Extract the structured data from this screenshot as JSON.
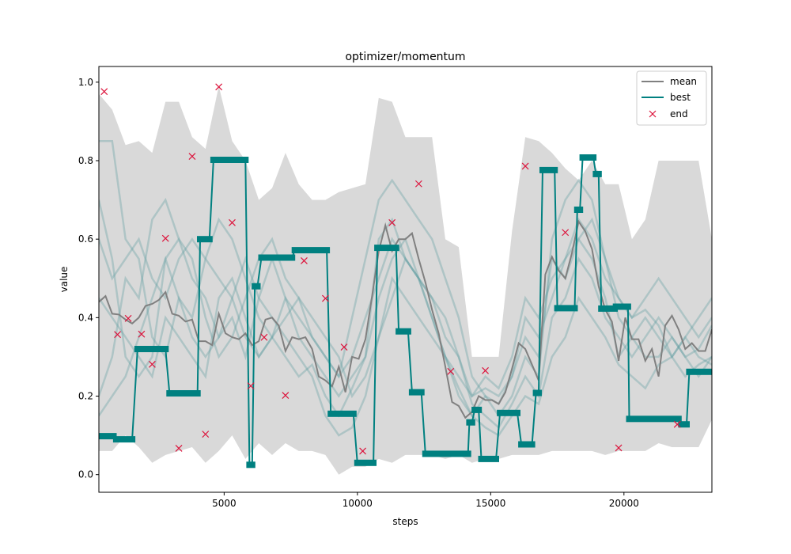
{
  "chart_data": {
    "type": "line",
    "title": "optimizer/momentum",
    "xlabel": "steps",
    "ylabel": "value",
    "xlim": [
      300,
      23300
    ],
    "ylim": [
      -0.045,
      1.04
    ],
    "xticks": [
      5000,
      10000,
      15000,
      20000
    ],
    "xtick_labels": [
      "5000",
      "10000",
      "15000",
      "20000"
    ],
    "yticks": [
      0.0,
      0.2,
      0.4,
      0.6,
      0.8,
      1.0
    ],
    "ytick_labels": [
      "0.0",
      "0.2",
      "0.4",
      "0.6",
      "0.8",
      "1.0"
    ],
    "grid": false,
    "legend": {
      "position": "top-right",
      "entries": [
        "mean",
        "best",
        "end"
      ]
    },
    "colors": {
      "mean": "#808080",
      "best": "#008080",
      "end": "#dc143c",
      "band": "#d9d9d9",
      "runs": "#5f9ea0"
    },
    "band": {
      "x": [
        300,
        800,
        1300,
        1800,
        2300,
        2800,
        3300,
        3800,
        4300,
        4800,
        5300,
        5800,
        6300,
        6800,
        7300,
        7800,
        8300,
        8800,
        9300,
        9800,
        10300,
        10800,
        11300,
        11800,
        12300,
        12800,
        13300,
        13800,
        14300,
        14800,
        15300,
        15800,
        16300,
        16800,
        17300,
        17800,
        18300,
        18800,
        19300,
        19800,
        20300,
        20800,
        21300,
        21800,
        22300,
        22800,
        23300
      ],
      "upper": [
        0.97,
        0.93,
        0.84,
        0.85,
        0.82,
        0.95,
        0.95,
        0.86,
        0.83,
        0.99,
        0.85,
        0.8,
        0.7,
        0.73,
        0.82,
        0.74,
        0.7,
        0.7,
        0.72,
        0.73,
        0.74,
        0.96,
        0.95,
        0.86,
        0.86,
        0.86,
        0.6,
        0.58,
        0.3,
        0.3,
        0.3,
        0.62,
        0.86,
        0.85,
        0.82,
        0.78,
        0.75,
        0.8,
        0.74,
        0.74,
        0.6,
        0.65,
        0.8,
        0.8,
        0.8,
        0.8,
        0.6
      ],
      "lower": [
        0.06,
        0.06,
        0.1,
        0.07,
        0.03,
        0.05,
        0.06,
        0.07,
        0.03,
        0.06,
        0.1,
        0.04,
        0.08,
        0.05,
        0.08,
        0.06,
        0.06,
        0.05,
        0.0,
        0.02,
        0.02,
        0.04,
        0.03,
        0.05,
        0.05,
        0.05,
        0.04,
        0.05,
        0.03,
        0.04,
        0.04,
        0.05,
        0.05,
        0.05,
        0.06,
        0.06,
        0.06,
        0.06,
        0.05,
        0.06,
        0.06,
        0.06,
        0.08,
        0.07,
        0.07,
        0.07,
        0.14
      ]
    },
    "series": [
      {
        "name": "mean",
        "x": [
          300,
          550,
          800,
          1050,
          1300,
          1550,
          1800,
          2050,
          2300,
          2550,
          2800,
          3050,
          3300,
          3550,
          3800,
          4050,
          4300,
          4550,
          4800,
          5050,
          5300,
          5550,
          5800,
          6050,
          6300,
          6550,
          6800,
          7050,
          7300,
          7550,
          7800,
          8050,
          8300,
          8550,
          8800,
          9050,
          9300,
          9550,
          9800,
          10050,
          10300,
          10550,
          10800,
          11050,
          11300,
          11550,
          11800,
          12050,
          12300,
          12550,
          12800,
          13050,
          13300,
          13550,
          13800,
          14050,
          14300,
          14550,
          14800,
          15050,
          15300,
          15550,
          15800,
          16050,
          16300,
          16550,
          16800,
          17050,
          17300,
          17550,
          17800,
          18050,
          18300,
          18550,
          18800,
          19050,
          19300,
          19550,
          19800,
          20050,
          20300,
          20550,
          20800,
          21050,
          21300,
          21550,
          21800,
          22050,
          22300,
          22550,
          22800,
          23050,
          23300
        ],
        "values": [
          0.44,
          0.455,
          0.41,
          0.408,
          0.395,
          0.385,
          0.4,
          0.43,
          0.435,
          0.445,
          0.465,
          0.41,
          0.405,
          0.39,
          0.395,
          0.34,
          0.34,
          0.33,
          0.41,
          0.36,
          0.35,
          0.345,
          0.36,
          0.33,
          0.34,
          0.395,
          0.4,
          0.38,
          0.315,
          0.35,
          0.345,
          0.35,
          0.32,
          0.25,
          0.24,
          0.225,
          0.275,
          0.21,
          0.3,
          0.295,
          0.345,
          0.455,
          0.57,
          0.635,
          0.57,
          0.6,
          0.6,
          0.615,
          0.55,
          0.49,
          0.42,
          0.36,
          0.275,
          0.185,
          0.175,
          0.145,
          0.16,
          0.2,
          0.19,
          0.19,
          0.18,
          0.21,
          0.27,
          0.335,
          0.32,
          0.28,
          0.24,
          0.51,
          0.555,
          0.52,
          0.5,
          0.565,
          0.645,
          0.62,
          0.575,
          0.48,
          0.42,
          0.39,
          0.29,
          0.4,
          0.345,
          0.345,
          0.29,
          0.32,
          0.25,
          0.38,
          0.405,
          0.37,
          0.32,
          0.335,
          0.315,
          0.315,
          0.37
        ]
      },
      {
        "name": "best",
        "steps": [
          [
            300,
            850,
            0.098
          ],
          [
            950,
            1550,
            0.09
          ],
          [
            1750,
            2800,
            0.32
          ],
          [
            2950,
            4000,
            0.207
          ],
          [
            4100,
            4450,
            0.6
          ],
          [
            4600,
            5800,
            0.802
          ],
          [
            5950,
            6050,
            0.025
          ],
          [
            6150,
            6250,
            0.48
          ],
          [
            6400,
            7550,
            0.553
          ],
          [
            7650,
            8850,
            0.572
          ],
          [
            9000,
            9850,
            0.155
          ],
          [
            10000,
            10600,
            0.03
          ],
          [
            10750,
            11450,
            0.578
          ],
          [
            11550,
            11900,
            0.365
          ],
          [
            12050,
            12400,
            0.21
          ],
          [
            12550,
            14150,
            0.053
          ],
          [
            14200,
            14300,
            0.133
          ],
          [
            14400,
            14550,
            0.165
          ],
          [
            14650,
            15200,
            0.04
          ],
          [
            15350,
            16000,
            0.157
          ],
          [
            16150,
            16550,
            0.077
          ],
          [
            16700,
            16800,
            0.208
          ],
          [
            16950,
            17400,
            0.776
          ],
          [
            17500,
            18150,
            0.424
          ],
          [
            18250,
            18350,
            0.675
          ],
          [
            18450,
            18850,
            0.808
          ],
          [
            18950,
            19050,
            0.766
          ],
          [
            19150,
            19650,
            0.423
          ],
          [
            19700,
            20150,
            0.428
          ],
          [
            20200,
            22050,
            0.142
          ],
          [
            22150,
            22350,
            0.128
          ],
          [
            22450,
            23300,
            0.262
          ]
        ]
      },
      {
        "name": "end",
        "x": [
          500,
          1000,
          1400,
          1900,
          2300,
          2800,
          3300,
          3800,
          4300,
          4800,
          5300,
          6000,
          6500,
          7300,
          8000,
          8800,
          9500,
          10200,
          11300,
          12300,
          13500,
          14800,
          16300,
          17800,
          19800,
          22000
        ],
        "values": [
          0.976,
          0.357,
          0.398,
          0.358,
          0.281,
          0.602,
          0.067,
          0.811,
          0.103,
          0.988,
          0.642,
          0.226,
          0.35,
          0.202,
          0.545,
          0.449,
          0.325,
          0.06,
          0.642,
          0.741,
          0.263,
          0.265,
          0.786,
          0.617,
          0.068,
          0.128
        ]
      }
    ],
    "runs": [
      [
        0.7,
        0.55,
        0.3,
        0.25,
        0.3,
        0.55,
        0.6,
        0.5,
        0.45,
        0.35,
        0.4,
        0.3,
        0.45,
        0.55,
        0.45,
        0.35,
        0.3,
        0.25,
        0.2,
        0.25,
        0.3,
        0.45,
        0.55,
        0.6,
        0.5,
        0.4,
        0.3,
        0.2,
        0.15,
        0.2,
        0.18,
        0.25,
        0.35,
        0.3,
        0.55,
        0.5,
        0.6,
        0.55,
        0.45,
        0.3,
        0.35,
        0.4,
        0.35,
        0.3,
        0.35,
        0.4,
        0.45
      ],
      [
        0.85,
        0.85,
        0.6,
        0.55,
        0.35,
        0.3,
        0.45,
        0.4,
        0.55,
        0.65,
        0.6,
        0.5,
        0.4,
        0.35,
        0.45,
        0.4,
        0.35,
        0.3,
        0.25,
        0.4,
        0.55,
        0.7,
        0.75,
        0.7,
        0.65,
        0.6,
        0.5,
        0.4,
        0.25,
        0.2,
        0.15,
        0.2,
        0.3,
        0.25,
        0.6,
        0.7,
        0.75,
        0.7,
        0.55,
        0.4,
        0.35,
        0.3,
        0.3,
        0.35,
        0.3,
        0.25,
        0.3
      ],
      [
        0.2,
        0.3,
        0.5,
        0.45,
        0.65,
        0.7,
        0.6,
        0.55,
        0.4,
        0.3,
        0.35,
        0.45,
        0.55,
        0.6,
        0.5,
        0.45,
        0.4,
        0.35,
        0.3,
        0.2,
        0.25,
        0.35,
        0.45,
        0.55,
        0.5,
        0.45,
        0.35,
        0.3,
        0.2,
        0.22,
        0.2,
        0.25,
        0.4,
        0.35,
        0.45,
        0.55,
        0.65,
        0.6,
        0.5,
        0.45,
        0.4,
        0.42,
        0.38,
        0.3,
        0.25,
        0.28,
        0.3
      ],
      [
        0.45,
        0.4,
        0.35,
        0.3,
        0.25,
        0.4,
        0.35,
        0.3,
        0.25,
        0.45,
        0.5,
        0.4,
        0.3,
        0.35,
        0.3,
        0.25,
        0.28,
        0.2,
        0.15,
        0.22,
        0.3,
        0.6,
        0.65,
        0.55,
        0.5,
        0.45,
        0.4,
        0.3,
        0.18,
        0.15,
        0.12,
        0.18,
        0.25,
        0.2,
        0.4,
        0.45,
        0.55,
        0.5,
        0.4,
        0.35,
        0.3,
        0.35,
        0.4,
        0.35,
        0.3,
        0.32,
        0.38
      ],
      [
        0.15,
        0.2,
        0.25,
        0.35,
        0.45,
        0.55,
        0.45,
        0.35,
        0.3,
        0.35,
        0.45,
        0.55,
        0.45,
        0.4,
        0.35,
        0.3,
        0.25,
        0.15,
        0.1,
        0.12,
        0.2,
        0.35,
        0.5,
        0.45,
        0.4,
        0.35,
        0.3,
        0.22,
        0.15,
        0.12,
        0.1,
        0.15,
        0.2,
        0.18,
        0.3,
        0.35,
        0.45,
        0.4,
        0.35,
        0.28,
        0.25,
        0.22,
        0.28,
        0.3,
        0.35,
        0.3,
        0.28
      ],
      [
        0.6,
        0.5,
        0.55,
        0.6,
        0.5,
        0.45,
        0.55,
        0.6,
        0.55,
        0.5,
        0.45,
        0.35,
        0.3,
        0.35,
        0.4,
        0.45,
        0.35,
        0.3,
        0.25,
        0.3,
        0.4,
        0.5,
        0.6,
        0.55,
        0.5,
        0.4,
        0.3,
        0.25,
        0.2,
        0.25,
        0.22,
        0.3,
        0.45,
        0.4,
        0.5,
        0.55,
        0.6,
        0.65,
        0.55,
        0.45,
        0.4,
        0.45,
        0.5,
        0.45,
        0.4,
        0.35,
        0.4
      ]
    ]
  }
}
